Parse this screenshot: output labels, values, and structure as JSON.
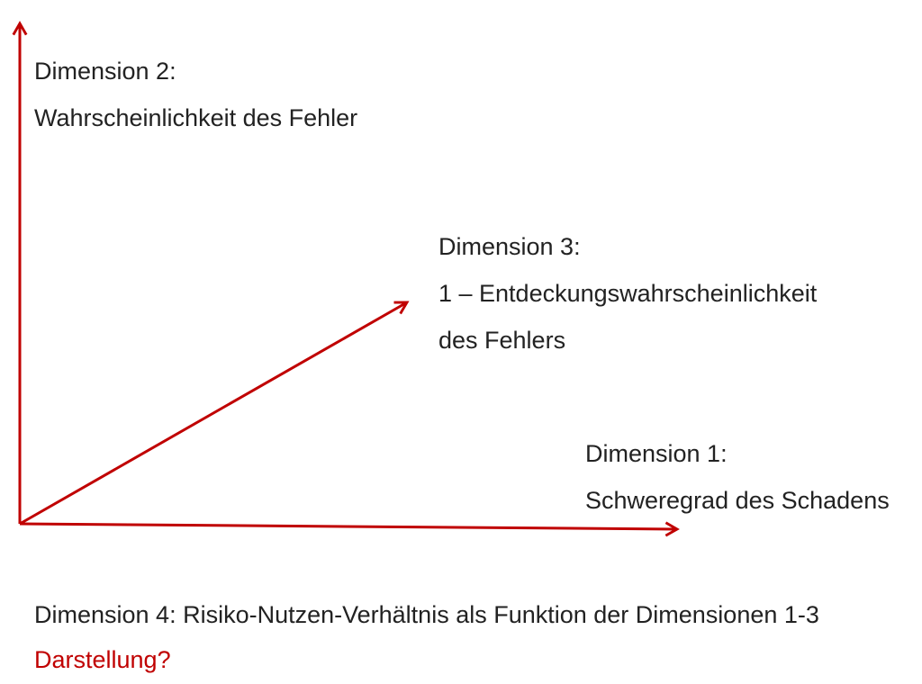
{
  "dimension_2": {
    "lines": [
      "Dimension 2:",
      "Wahrscheinlichkeit des Fehler"
    ]
  },
  "dimension_3": {
    "lines": [
      "Dimension 3:",
      "1 – Entdeckungswahrscheinlichkeit",
      "des Fehlers"
    ]
  },
  "dimension_1": {
    "lines": [
      "Dimension 1:",
      "Schweregrad des Schadens"
    ]
  },
  "footer": {
    "text": "Dimension 4: Risiko-Nutzen-Verhältnis als Funktion der Dimensionen 1-3",
    "question": "Darstellung?"
  }
}
